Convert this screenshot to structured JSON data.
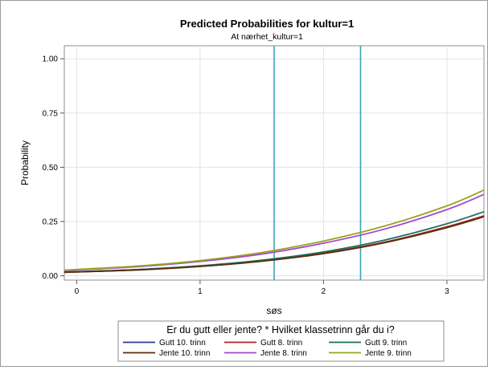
{
  "chart_data": {
    "type": "line",
    "title": "Predicted Probabilities for kultur=1",
    "subtitle": "At nærhet_kultur=1",
    "xlabel": "søs",
    "ylabel": "Probability",
    "xlim": [
      -0.1,
      3.3
    ],
    "ylim": [
      -0.02,
      1.06
    ],
    "x_ticks": [
      {
        "value": 0,
        "label": "0"
      },
      {
        "value": 1,
        "label": "1"
      },
      {
        "value": 2,
        "label": "2"
      },
      {
        "value": 3,
        "label": "3"
      }
    ],
    "y_ticks": [
      {
        "value": 0,
        "label": "0.00"
      },
      {
        "value": 0.25,
        "label": "0.25"
      },
      {
        "value": 0.5,
        "label": "0.50"
      },
      {
        "value": 0.75,
        "label": "0.75"
      },
      {
        "value": 1,
        "label": "1.00"
      }
    ],
    "grid": true,
    "reference_lines_x": [
      1.6,
      2.3
    ],
    "reference_line_color": "#3aa3b3",
    "legend_title": "Er du gutt eller jente? * Hvilket klassetrinn går du i?",
    "legend_position": "bottom",
    "series": [
      {
        "name": "Gutt 10. trinn",
        "color": "#2f3a8f",
        "x": [
          -0.1,
          0,
          0.5,
          1,
          1.5,
          2,
          2.5,
          3,
          3.3
        ],
        "values": [
          0.016,
          0.018,
          0.028,
          0.044,
          0.068,
          0.104,
          0.155,
          0.225,
          0.275
        ]
      },
      {
        "name": "Gutt 8. trinn",
        "color": "#b22222",
        "x": [
          -0.1,
          0,
          0.5,
          1,
          1.5,
          2,
          2.5,
          3,
          3.3
        ],
        "values": [
          0.016,
          0.018,
          0.028,
          0.044,
          0.068,
          0.104,
          0.155,
          0.226,
          0.276
        ]
      },
      {
        "name": "Gutt 9. trinn",
        "color": "#1e6e5e",
        "x": [
          -0.1,
          0,
          0.5,
          1,
          1.5,
          2,
          2.5,
          3,
          3.3
        ],
        "values": [
          0.017,
          0.019,
          0.029,
          0.046,
          0.072,
          0.11,
          0.165,
          0.24,
          0.295
        ]
      },
      {
        "name": "Jente 10. trinn",
        "color": "#5a2d0c",
        "x": [
          -0.1,
          0,
          0.5,
          1,
          1.5,
          2,
          2.5,
          3,
          3.3
        ],
        "values": [
          0.016,
          0.018,
          0.027,
          0.043,
          0.067,
          0.102,
          0.153,
          0.222,
          0.272
        ]
      },
      {
        "name": "Jente 8. trinn",
        "color": "#a04ad0",
        "x": [
          -0.1,
          0,
          0.5,
          1,
          1.5,
          2,
          2.5,
          3,
          3.3
        ],
        "values": [
          0.024,
          0.027,
          0.042,
          0.066,
          0.1,
          0.15,
          0.216,
          0.305,
          0.375
        ]
      },
      {
        "name": "Jente 9. trinn",
        "color": "#9aa220",
        "x": [
          -0.1,
          0,
          0.5,
          1,
          1.5,
          2,
          2.5,
          3,
          3.3
        ],
        "values": [
          0.026,
          0.029,
          0.045,
          0.07,
          0.107,
          0.16,
          0.23,
          0.322,
          0.395
        ]
      }
    ]
  }
}
